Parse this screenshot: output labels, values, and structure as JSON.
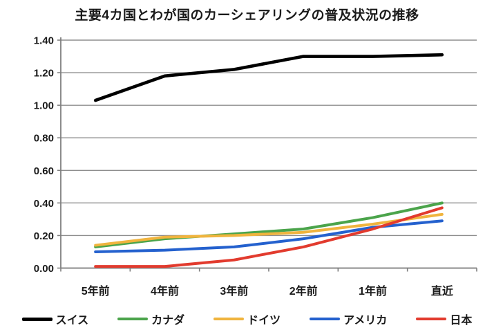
{
  "title": "主要4カ国とわが国のカーシェアリングの普及状況の推移",
  "chart_data": {
    "type": "line",
    "title": "主要4カ国とわが国のカーシェアリングの普及状況の推移",
    "categories": [
      "5年前",
      "4年前",
      "3年前",
      "2年前",
      "1年前",
      "直近"
    ],
    "series": [
      {
        "name": "スイス",
        "color": "#000000",
        "values": [
          1.03,
          1.18,
          1.22,
          1.3,
          1.3,
          1.31
        ]
      },
      {
        "name": "カナダ",
        "color": "#4BA44B",
        "values": [
          0.13,
          0.18,
          0.21,
          0.24,
          0.31,
          0.4
        ]
      },
      {
        "name": "ドイツ",
        "color": "#F0B43E",
        "values": [
          0.14,
          0.19,
          0.2,
          0.22,
          0.27,
          0.33
        ]
      },
      {
        "name": "アメリカ",
        "color": "#2461CE",
        "values": [
          0.1,
          0.11,
          0.13,
          0.18,
          0.25,
          0.29
        ]
      },
      {
        "name": "日本",
        "color": "#E23B2E",
        "values": [
          0.01,
          0.01,
          0.05,
          0.13,
          0.24,
          0.37
        ]
      }
    ],
    "xlabel": "",
    "ylabel": "",
    "ylim": [
      0.0,
      1.4
    ],
    "ytick_step": 0.2,
    "ytick_labels": [
      "1.40",
      "1.20",
      "1.00",
      "0.80",
      "0.60",
      "0.40",
      "0.20",
      "0.00"
    ],
    "grid": true,
    "legend_position": "bottom",
    "colors": {
      "grid": "#8E8E8E",
      "axis": "#7F7F7F",
      "text": "#1A1A1A",
      "background": "#FFFFFF"
    }
  }
}
